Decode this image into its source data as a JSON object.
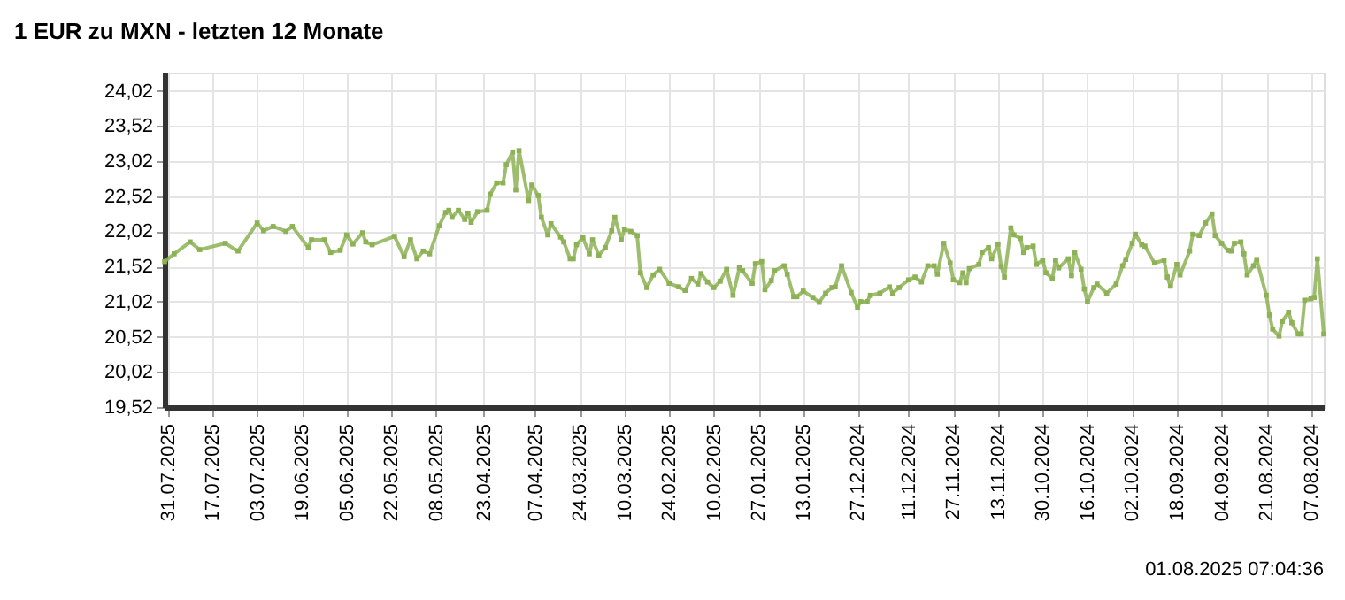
{
  "chart_data": {
    "type": "line",
    "title": "1 EUR zu MXN - letzten 12 Monate",
    "x": [
      "2025-08-01",
      "2025-07-29",
      "2025-07-24",
      "2025-07-21",
      "2025-07-13",
      "2025-07-09",
      "2025-07-03",
      "2025-07-01",
      "2025-06-28",
      "2025-06-24",
      "2025-06-22",
      "2025-06-17",
      "2025-06-16",
      "2025-06-12",
      "2025-06-10",
      "2025-06-07",
      "2025-06-05",
      "2025-06-03",
      "2025-05-31",
      "2025-05-30",
      "2025-05-28",
      "2025-05-21",
      "2025-05-18",
      "2025-05-16",
      "2025-05-14",
      "2025-05-12",
      "2025-05-10",
      "2025-05-07",
      "2025-05-05",
      "2025-05-04",
      "2025-05-03",
      "2025-05-01",
      "2025-04-29",
      "2025-04-28",
      "2025-04-27",
      "2025-04-25",
      "2025-04-22",
      "2025-04-21",
      "2025-04-19",
      "2025-04-17",
      "2025-04-16",
      "2025-04-14",
      "2025-04-13",
      "2025-04-12",
      "2025-04-09",
      "2025-04-08",
      "2025-04-06",
      "2025-04-05",
      "2025-04-03",
      "2025-04-02",
      "2025-03-30",
      "2025-03-29",
      "2025-03-27",
      "2025-03-26",
      "2025-03-25",
      "2025-03-23",
      "2025-03-21",
      "2025-03-20",
      "2025-03-18",
      "2025-03-16",
      "2025-03-14",
      "2025-03-13",
      "2025-03-11",
      "2025-03-10",
      "2025-03-08",
      "2025-03-06",
      "2025-03-05",
      "2025-03-03",
      "2025-03-01",
      "2025-02-27",
      "2025-02-24",
      "2025-02-21",
      "2025-02-19",
      "2025-02-17",
      "2025-02-15",
      "2025-02-14",
      "2025-02-12",
      "2025-02-10",
      "2025-02-08",
      "2025-02-06",
      "2025-02-04",
      "2025-02-02",
      "2025-02-01",
      "2025-01-29",
      "2025-01-28",
      "2025-01-26",
      "2025-01-25",
      "2025-01-23",
      "2025-01-22",
      "2025-01-19",
      "2025-01-18",
      "2025-01-16",
      "2025-01-15",
      "2025-01-13",
      "2025-01-10",
      "2025-01-08",
      "2025-01-06",
      "2025-01-04",
      "2025-01-03",
      "2025-01-01",
      "2024-12-29",
      "2024-12-27",
      "2024-12-26",
      "2024-12-24",
      "2024-12-23",
      "2024-12-20",
      "2024-12-17",
      "2024-12-16",
      "2024-12-14",
      "2024-12-11",
      "2024-12-09",
      "2024-12-07",
      "2024-12-05",
      "2024-12-03",
      "2024-12-02",
      "2024-11-30",
      "2024-11-28",
      "2024-11-27",
      "2024-11-25",
      "2024-11-24",
      "2024-11-23",
      "2024-11-22",
      "2024-11-19",
      "2024-11-18",
      "2024-11-16",
      "2024-11-15",
      "2024-11-13",
      "2024-11-12",
      "2024-11-11",
      "2024-11-09",
      "2024-11-08",
      "2024-11-06",
      "2024-11-05",
      "2024-11-04",
      "2024-11-02",
      "2024-11-01",
      "2024-10-30",
      "2024-10-29",
      "2024-10-27",
      "2024-10-26",
      "2024-10-25",
      "2024-10-22",
      "2024-10-21",
      "2024-10-20",
      "2024-10-18",
      "2024-10-17",
      "2024-10-16",
      "2024-10-14",
      "2024-10-13",
      "2024-10-10",
      "2024-10-07",
      "2024-10-05",
      "2024-10-04",
      "2024-10-02",
      "2024-10-01",
      "2024-09-29",
      "2024-09-28",
      "2024-09-25",
      "2024-09-22",
      "2024-09-21",
      "2024-09-20",
      "2024-09-18",
      "2024-09-17",
      "2024-09-14",
      "2024-09-13",
      "2024-09-11",
      "2024-09-09",
      "2024-09-07",
      "2024-09-06",
      "2024-09-04",
      "2024-09-02",
      "2024-09-01",
      "2024-08-31",
      "2024-08-29",
      "2024-08-28",
      "2024-08-27",
      "2024-08-25",
      "2024-08-24",
      "2024-08-21",
      "2024-08-20",
      "2024-08-19",
      "2024-08-17",
      "2024-08-16",
      "2024-08-14",
      "2024-08-13",
      "2024-08-11",
      "2024-08-10",
      "2024-08-09",
      "2024-08-07",
      "2024-08-06",
      "2024-08-05",
      "2024-08-03"
    ],
    "series": [
      {
        "color": "#8db255",
        "values": [
          21.59,
          21.7,
          21.87,
          21.76,
          21.85,
          21.74,
          22.14,
          22.03,
          22.09,
          22.02,
          22.09,
          21.79,
          21.9,
          21.9,
          21.72,
          21.75,
          21.97,
          21.84,
          22.0,
          21.87,
          21.83,
          21.95,
          21.66,
          21.9,
          21.63,
          21.74,
          21.7,
          22.1,
          22.29,
          22.32,
          22.22,
          22.32,
          22.19,
          22.28,
          22.15,
          22.3,
          22.32,
          22.55,
          22.71,
          22.71,
          22.97,
          23.15,
          22.61,
          23.17,
          22.46,
          22.68,
          22.53,
          22.22,
          21.97,
          22.13,
          21.94,
          21.87,
          21.63,
          21.63,
          21.83,
          21.93,
          21.7,
          21.9,
          21.68,
          21.79,
          22.03,
          22.22,
          21.9,
          22.05,
          22.02,
          21.96,
          21.43,
          21.22,
          21.4,
          21.48,
          21.28,
          21.23,
          21.18,
          21.35,
          21.27,
          21.42,
          21.3,
          21.22,
          21.31,
          21.48,
          21.11,
          21.5,
          21.46,
          21.28,
          21.56,
          21.59,
          21.19,
          21.32,
          21.46,
          21.53,
          21.41,
          21.09,
          21.09,
          21.17,
          21.08,
          21.01,
          21.14,
          21.22,
          21.23,
          21.53,
          21.15,
          20.94,
          21.02,
          21.02,
          21.11,
          21.14,
          21.23,
          21.14,
          21.22,
          21.33,
          21.37,
          21.3,
          21.53,
          21.53,
          21.41,
          21.85,
          21.57,
          21.33,
          21.29,
          21.43,
          21.29,
          21.49,
          21.55,
          21.72,
          21.79,
          21.63,
          21.84,
          21.52,
          21.37,
          22.07,
          21.97,
          21.92,
          21.72,
          21.79,
          21.81,
          21.55,
          21.61,
          21.43,
          21.35,
          21.61,
          21.5,
          21.63,
          21.39,
          21.72,
          21.48,
          21.2,
          21.02,
          21.22,
          21.27,
          21.14,
          21.27,
          21.53,
          21.62,
          21.85,
          21.98,
          21.83,
          21.81,
          21.57,
          21.61,
          21.37,
          21.24,
          21.55,
          21.4,
          21.74,
          21.98,
          21.96,
          22.14,
          22.27,
          21.96,
          21.85,
          21.75,
          21.74,
          21.85,
          21.87,
          21.7,
          21.4,
          21.53,
          21.62,
          21.11,
          20.83,
          20.63,
          20.53,
          20.74,
          20.87,
          20.72,
          20.56,
          20.56,
          21.04,
          21.06,
          21.08,
          21.63,
          20.56
        ]
      }
    ],
    "xlim": [
      "2025-08-01",
      "2024-08-03"
    ],
    "xticks": [
      {
        "value": "2025-07-31",
        "label": "31.07.2025"
      },
      {
        "value": "2025-07-17",
        "label": "17.07.2025"
      },
      {
        "value": "2025-07-03",
        "label": "03.07.2025"
      },
      {
        "value": "2025-06-19",
        "label": "19.06.2025"
      },
      {
        "value": "2025-06-05",
        "label": "05.06.2025"
      },
      {
        "value": "2025-05-22",
        "label": "22.05.2025"
      },
      {
        "value": "2025-05-08",
        "label": "08.05.2025"
      },
      {
        "value": "2025-04-23",
        "label": "23.04.2025"
      },
      {
        "value": "2025-04-07",
        "label": "07.04.2025"
      },
      {
        "value": "2025-03-24",
        "label": "24.03.2025"
      },
      {
        "value": "2025-03-10",
        "label": "10.03.2025"
      },
      {
        "value": "2025-02-24",
        "label": "24.02.2025"
      },
      {
        "value": "2025-02-10",
        "label": "10.02.2025"
      },
      {
        "value": "2025-01-27",
        "label": "27.01.2025"
      },
      {
        "value": "2025-01-13",
        "label": "13.01.2025"
      },
      {
        "value": "2024-12-27",
        "label": "27.12.2024"
      },
      {
        "value": "2024-12-11",
        "label": "11.12.2024"
      },
      {
        "value": "2024-11-27",
        "label": "27.11.2024"
      },
      {
        "value": "2024-11-13",
        "label": "13.11.2024"
      },
      {
        "value": "2024-10-30",
        "label": "30.10.2024"
      },
      {
        "value": "2024-10-16",
        "label": "16.10.2024"
      },
      {
        "value": "2024-10-02",
        "label": "02.10.2024"
      },
      {
        "value": "2024-09-18",
        "label": "18.09.2024"
      },
      {
        "value": "2024-09-04",
        "label": "04.09.2024"
      },
      {
        "value": "2024-08-21",
        "label": "21.08.2024"
      },
      {
        "value": "2024-08-07",
        "label": "07.08.2024"
      }
    ],
    "ylim": [
      19.52,
      24.28
    ],
    "yticks": [
      {
        "value": 19.52,
        "label": "19,52"
      },
      {
        "value": 20.02,
        "label": "20,02"
      },
      {
        "value": 20.52,
        "label": "20,52"
      },
      {
        "value": 21.02,
        "label": "21,02"
      },
      {
        "value": 21.52,
        "label": "21,52"
      },
      {
        "value": 22.02,
        "label": "22,02"
      },
      {
        "value": 22.52,
        "label": "22,52"
      },
      {
        "value": 23.02,
        "label": "23,02"
      },
      {
        "value": 23.52,
        "label": "23,52"
      },
      {
        "value": 24.02,
        "label": "24,02"
      }
    ],
    "grid": true,
    "marker": "square",
    "line_style": "solid",
    "annotations": [
      "01.08.2025 07:04:36"
    ]
  }
}
